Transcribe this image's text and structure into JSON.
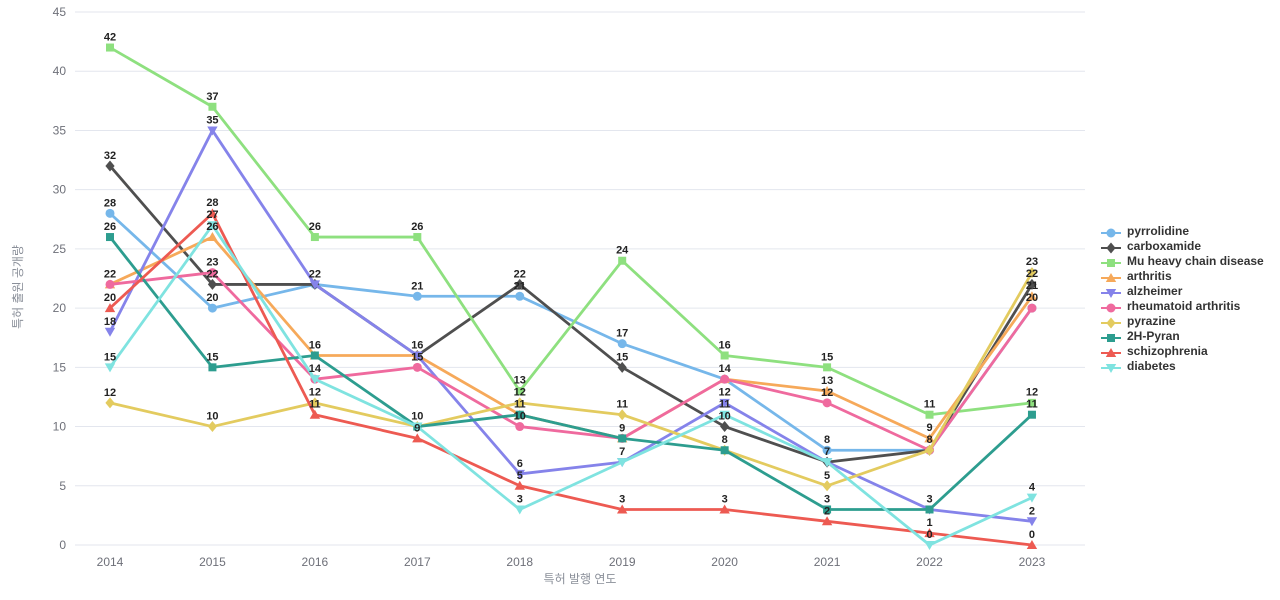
{
  "chart_data": {
    "type": "line",
    "title": "",
    "xlabel": "특허 발행 연도",
    "ylabel": "특허 출원 공개량",
    "x": [
      2014,
      2015,
      2016,
      2017,
      2018,
      2019,
      2020,
      2021,
      2022,
      2023
    ],
    "ylim": [
      0,
      45
    ],
    "yticks": [
      0,
      5,
      10,
      15,
      20,
      25,
      30,
      35,
      40,
      45
    ],
    "grid": true,
    "legend_position": "right",
    "point_labels_shown": true,
    "series": [
      {
        "name": "pyrrolidine",
        "color": "#76b7ea",
        "symbol": "circle",
        "values": [
          28,
          20,
          22,
          21,
          21,
          17,
          14,
          8,
          8,
          20
        ]
      },
      {
        "name": "carboxamide",
        "color": "#4f4f4f",
        "symbol": "diamond",
        "values": [
          32,
          22,
          22,
          16,
          22,
          15,
          10,
          7,
          8,
          22
        ]
      },
      {
        "name": "Mu heavy chain disease",
        "color": "#8ee07f",
        "symbol": "square",
        "values": [
          42,
          37,
          26,
          26,
          13,
          24,
          16,
          15,
          11,
          12
        ]
      },
      {
        "name": "arthritis",
        "color": "#f6a95a",
        "symbol": "triangle",
        "values": [
          22,
          26,
          16,
          16,
          11,
          9,
          14,
          13,
          9,
          21
        ]
      },
      {
        "name": "alzheimer",
        "color": "#8583ea",
        "symbol": "triangle-down",
        "values": [
          18,
          35,
          22,
          16,
          6,
          7,
          12,
          7,
          3,
          2
        ]
      },
      {
        "name": "rheumatoid arthritis",
        "color": "#ef6a9e",
        "symbol": "circle",
        "values": [
          22,
          23,
          14,
          15,
          10,
          9,
          14,
          12,
          8,
          20
        ]
      },
      {
        "name": "pyrazine",
        "color": "#e3cb5f",
        "symbol": "diamond",
        "values": [
          12,
          10,
          12,
          10,
          12,
          11,
          8,
          5,
          8,
          23
        ]
      },
      {
        "name": "2H-Pyran",
        "color": "#2d9d8f",
        "symbol": "square",
        "values": [
          26,
          15,
          16,
          10,
          11,
          9,
          8,
          3,
          3,
          11
        ]
      },
      {
        "name": "schizophrenia",
        "color": "#ed5a52",
        "symbol": "triangle",
        "values": [
          20,
          28,
          11,
          9,
          5,
          3,
          3,
          2,
          1,
          0
        ]
      },
      {
        "name": "diabetes",
        "color": "#7fe3e0",
        "symbol": "triangle-down",
        "values": [
          15,
          27,
          14,
          10,
          3,
          7,
          11,
          7,
          0,
          4
        ]
      }
    ]
  }
}
